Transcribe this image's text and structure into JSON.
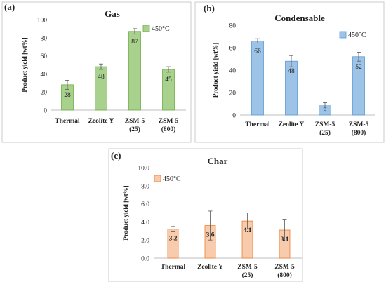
{
  "chart_data": [
    {
      "type": "bar",
      "panel_label": "(a)",
      "title": "Gas",
      "ylabel": "Product yield [wt%]",
      "legend": "450°C",
      "legend_position": "top-right",
      "categories": [
        [
          "Thermal"
        ],
        [
          "Zeolite Y"
        ],
        [
          "ZSM-5",
          "(25)"
        ],
        [
          "ZSM-5",
          "(800)"
        ]
      ],
      "values": [
        28,
        48,
        87,
        45
      ],
      "value_labels": [
        "28",
        "48",
        "87",
        "45"
      ],
      "error": [
        5,
        3,
        3,
        3
      ],
      "ylim": [
        0,
        100
      ],
      "yticks": [
        "0",
        "20",
        "40",
        "60",
        "80",
        "100"
      ],
      "color": "#a9d18e",
      "edge": "#70ad47"
    },
    {
      "type": "bar",
      "panel_label": "(b)",
      "title": "Condensable",
      "ylabel": "Product yield [wt%]",
      "legend": "450°C",
      "legend_position": "top-right",
      "categories": [
        [
          "Thermal"
        ],
        [
          "Zeolite Y"
        ],
        [
          "ZSM-5",
          "(25)"
        ],
        [
          "ZSM-5",
          "(800)"
        ]
      ],
      "values": [
        66,
        48,
        9,
        52
      ],
      "value_labels": [
        "66",
        "48",
        "9",
        "52"
      ],
      "error": [
        2,
        5,
        2,
        4
      ],
      "ylim": [
        0,
        80
      ],
      "yticks": [
        "0",
        "20",
        "40",
        "60",
        "80"
      ],
      "color": "#9dc3e6",
      "edge": "#5b9bd5"
    },
    {
      "type": "bar",
      "panel_label": "(c)",
      "title": "Char",
      "ylabel": "Product yield [wt%]",
      "legend": "450°C",
      "legend_position": "top-left",
      "categories": [
        [
          "Thermal"
        ],
        [
          "Zeolite Y"
        ],
        [
          "ZSM-5",
          "(25)"
        ],
        [
          "ZSM-5",
          "(800)"
        ]
      ],
      "values": [
        3.2,
        3.6,
        4.1,
        3.1
      ],
      "value_labels": [
        "3.2",
        "3.6",
        "4.1",
        "3.1"
      ],
      "error": [
        0.3,
        1.6,
        0.9,
        1.2
      ],
      "ylim": [
        0,
        10
      ],
      "yticks": [
        "0.0",
        "2.0",
        "4.0",
        "6.0",
        "8.0",
        "10.0"
      ],
      "color": "#f8cbad",
      "edge": "#ed7d31"
    }
  ]
}
